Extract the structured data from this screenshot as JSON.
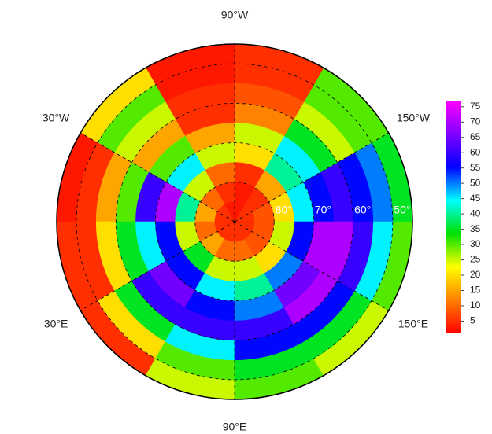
{
  "chart_data": {
    "type": "polar_heatmap",
    "latlim": [
      45,
      90
    ],
    "lat_bins": [
      45,
      50,
      55,
      60,
      65,
      70,
      75,
      80,
      85,
      90
    ],
    "lon_bins": [
      -180,
      -150,
      -120,
      -90,
      -60,
      -30,
      0,
      30,
      60,
      90,
      120,
      150,
      180
    ],
    "values": [
      [
        35,
        50,
        55,
        60,
        55,
        45,
        20,
        8,
        5
      ],
      [
        30,
        30,
        25,
        35,
        45,
        40,
        15,
        5,
        5
      ],
      [
        5,
        5,
        8,
        12,
        25,
        20,
        5,
        3,
        3
      ],
      [
        3,
        3,
        5,
        5,
        15,
        25,
        10,
        5,
        3
      ],
      [
        20,
        30,
        25,
        15,
        30,
        45,
        25,
        10,
        5
      ],
      [
        3,
        5,
        15,
        30,
        60,
        70,
        40,
        15,
        5
      ],
      [
        5,
        5,
        20,
        35,
        45,
        55,
        25,
        10,
        5
      ],
      [
        5,
        20,
        35,
        60,
        65,
        55,
        35,
        15,
        5
      ],
      [
        25,
        30,
        45,
        60,
        55,
        45,
        25,
        10,
        5
      ],
      [
        30,
        35,
        55,
        60,
        50,
        40,
        25,
        10,
        5
      ],
      [
        25,
        35,
        55,
        70,
        65,
        50,
        20,
        8,
        5
      ],
      [
        30,
        45,
        60,
        70,
        70,
        55,
        25,
        8,
        5
      ]
    ],
    "lonticks": [
      {
        "value": -90,
        "label": "90°W"
      },
      {
        "value": -30,
        "label": "30°W"
      },
      {
        "value": -150,
        "label": "150°W"
      },
      {
        "value": 30,
        "label": "30°E"
      },
      {
        "value": 150,
        "label": "150°E"
      },
      {
        "value": 90,
        "label": "90°E"
      }
    ],
    "latticks": [
      {
        "value": 80,
        "label": "80°"
      },
      {
        "value": 70,
        "label": "70°"
      },
      {
        "value": 60,
        "label": "60°"
      },
      {
        "value": 50,
        "label": "50°"
      }
    ],
    "clim": [
      1,
      77
    ],
    "cticks": [
      5,
      10,
      15,
      20,
      25,
      30,
      35,
      40,
      45,
      50,
      55,
      60,
      65,
      70,
      75
    ],
    "colormap": [
      "#ff0000",
      "#ff8000",
      "#ffff00",
      "#00e000",
      "#00ffff",
      "#0000ff",
      "#8000ff",
      "#ff00ff"
    ],
    "grid": true
  }
}
